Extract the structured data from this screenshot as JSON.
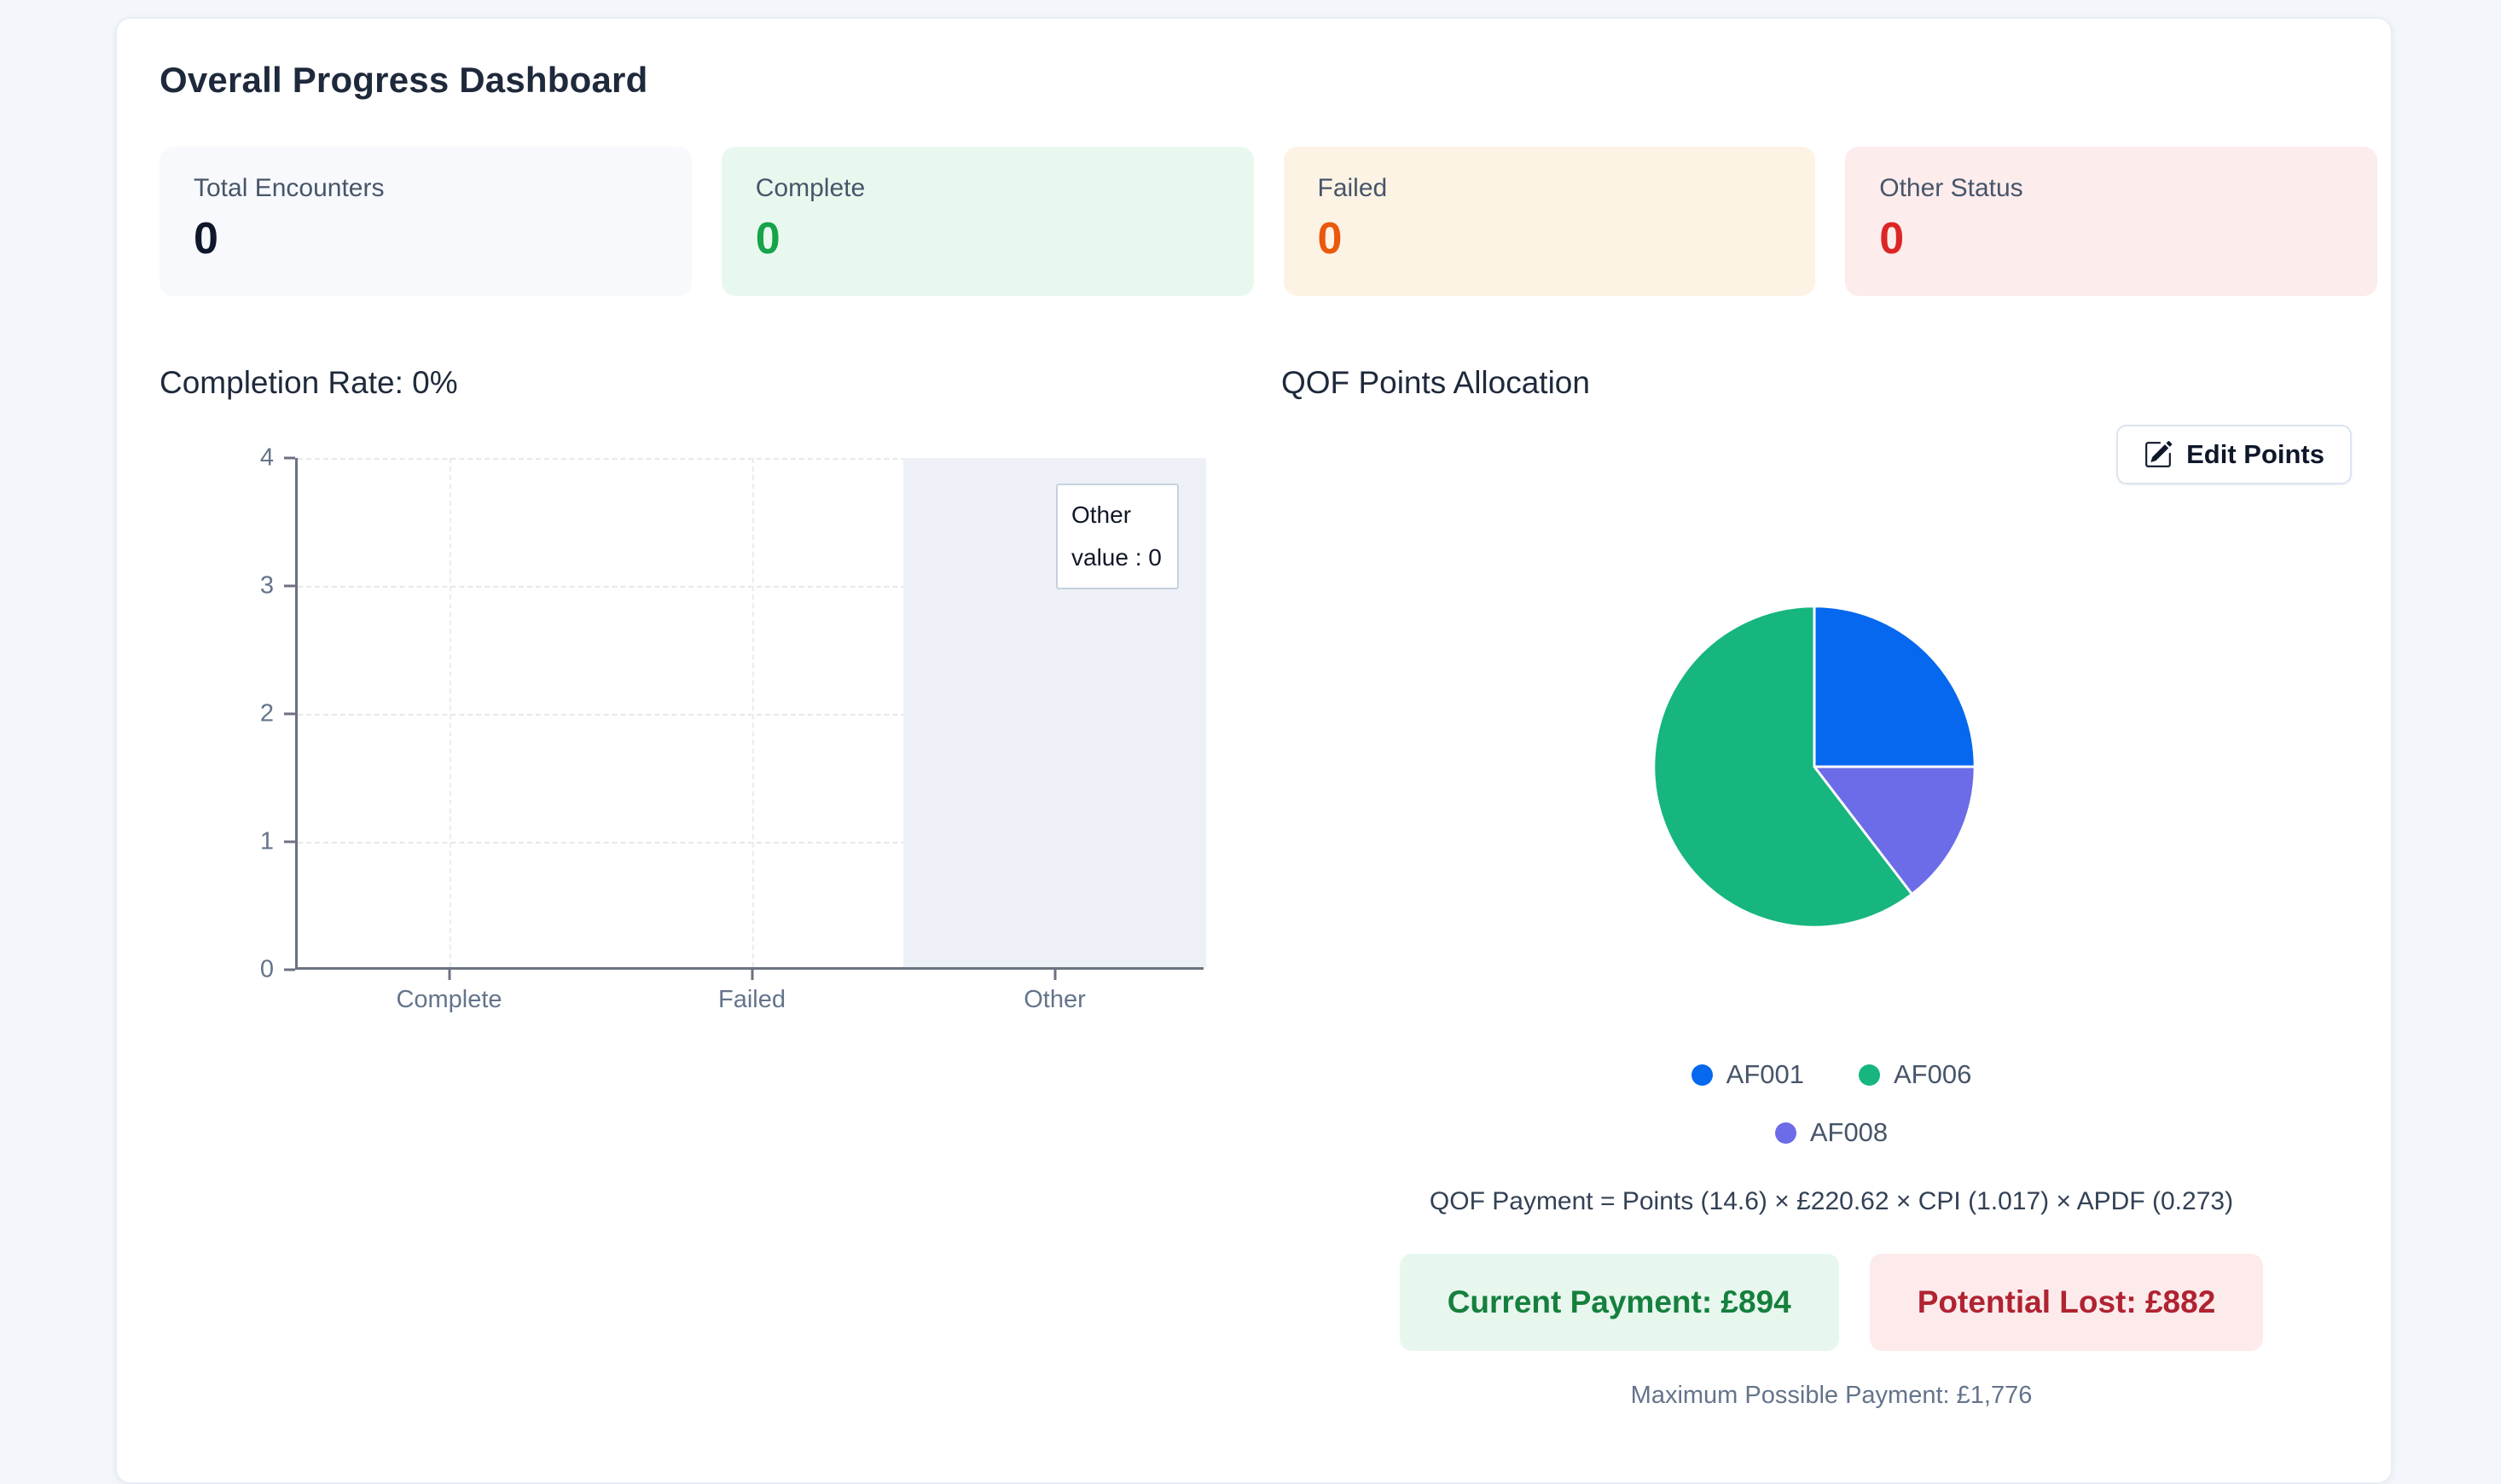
{
  "header": {
    "title": "Overall Progress Dashboard"
  },
  "stats": [
    {
      "label": "Total Encounters",
      "value": "0",
      "bg": "#f7f9fc",
      "value_color": "#0f172a"
    },
    {
      "label": "Complete",
      "value": "0",
      "bg": "#e8f8ef",
      "value_color": "#16a34a"
    },
    {
      "label": "Failed",
      "value": "0",
      "bg": "#fdf3e4",
      "value_color": "#ea580c"
    },
    {
      "label": "Other Status",
      "value": "0",
      "bg": "#fcecec",
      "value_color": "#dc2626"
    }
  ],
  "completion": {
    "title": "Completion Rate: 0%"
  },
  "qof": {
    "title": "QOF Points Allocation",
    "edit_button_label": "Edit Points",
    "legend": [
      {
        "label": "AF001",
        "color": "#0568ee"
      },
      {
        "label": "AF006",
        "color": "#16b67e"
      },
      {
        "label": "AF008",
        "color": "#6c6be8"
      }
    ],
    "formula": "QOF Payment = Points (14.6) × £220.62 × CPI (1.017) × APDF (0.273)",
    "current_payment": "Current Payment: £894",
    "potential_lost": "Potential Lost: £882",
    "max_payment": "Maximum Possible Payment: £1,776"
  },
  "chart_data": [
    {
      "type": "bar",
      "title": "Completion Rate: 0%",
      "categories": [
        "Complete",
        "Failed",
        "Other"
      ],
      "values": [
        0,
        0,
        0
      ],
      "xlabel": "",
      "ylabel": "",
      "ylim": [
        0,
        4
      ],
      "y_ticks": [
        4,
        3,
        2,
        1,
        0
      ],
      "grid": "dashed",
      "highlighted_category": "Other",
      "tooltip": {
        "title": "Other",
        "value": "value : 0"
      }
    },
    {
      "type": "pie",
      "title": "QOF Points Allocation",
      "slices": [
        {
          "label": "AF001",
          "percent": 25.0,
          "color": "#0568ee"
        },
        {
          "label": "AF008",
          "percent": 14.6,
          "color": "#6c6be8"
        },
        {
          "label": "AF006",
          "percent": 60.4,
          "color": "#16b67e"
        }
      ],
      "legend_position": "bottom"
    }
  ]
}
